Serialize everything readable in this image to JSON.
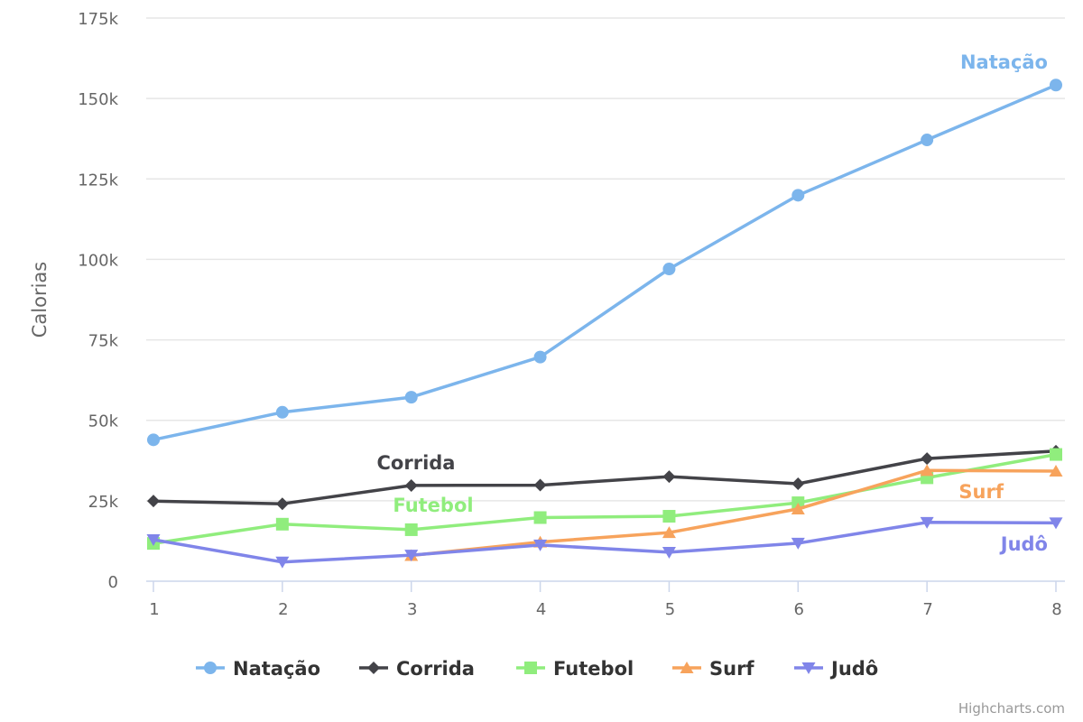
{
  "chart_data": {
    "type": "line",
    "title": "",
    "xlabel": "",
    "ylabel": "Calorias",
    "x": [
      1,
      2,
      3,
      4,
      5,
      6,
      7,
      8
    ],
    "ylim": [
      0,
      175000
    ],
    "yticks": [
      0,
      25000,
      50000,
      75000,
      100000,
      125000,
      150000,
      175000
    ],
    "ytick_labels": [
      "0",
      "25k",
      "50k",
      "75k",
      "100k",
      "125k",
      "150k",
      "175k"
    ],
    "grid": true,
    "legend_position": "bottom",
    "series": [
      {
        "name": "Natação",
        "color": "#7cb5ec",
        "marker": "circle",
        "values": [
          43934,
          52503,
          57177,
          69658,
          97031,
          119931,
          137133,
          154175
        ]
      },
      {
        "name": "Corrida",
        "color": "#434348",
        "marker": "diamond",
        "values": [
          24916,
          24064,
          29742,
          29851,
          32490,
          30282,
          38121,
          40434
        ]
      },
      {
        "name": "Futebol",
        "color": "#90ed7d",
        "marker": "square",
        "values": [
          11744,
          17722,
          16005,
          19771,
          20185,
          24377,
          32147,
          39387
        ]
      },
      {
        "name": "Surf",
        "color": "#f7a35c",
        "marker": "triangle",
        "values": [
          null,
          null,
          7988,
          12169,
          15112,
          22452,
          34400,
          34227
        ]
      },
      {
        "name": "Judô",
        "color": "#8085e9",
        "marker": "triangle-down",
        "values": [
          12908,
          5948,
          8105,
          11248,
          8989,
          11816,
          18274,
          18111
        ]
      }
    ],
    "credits": "Highcharts.com"
  }
}
